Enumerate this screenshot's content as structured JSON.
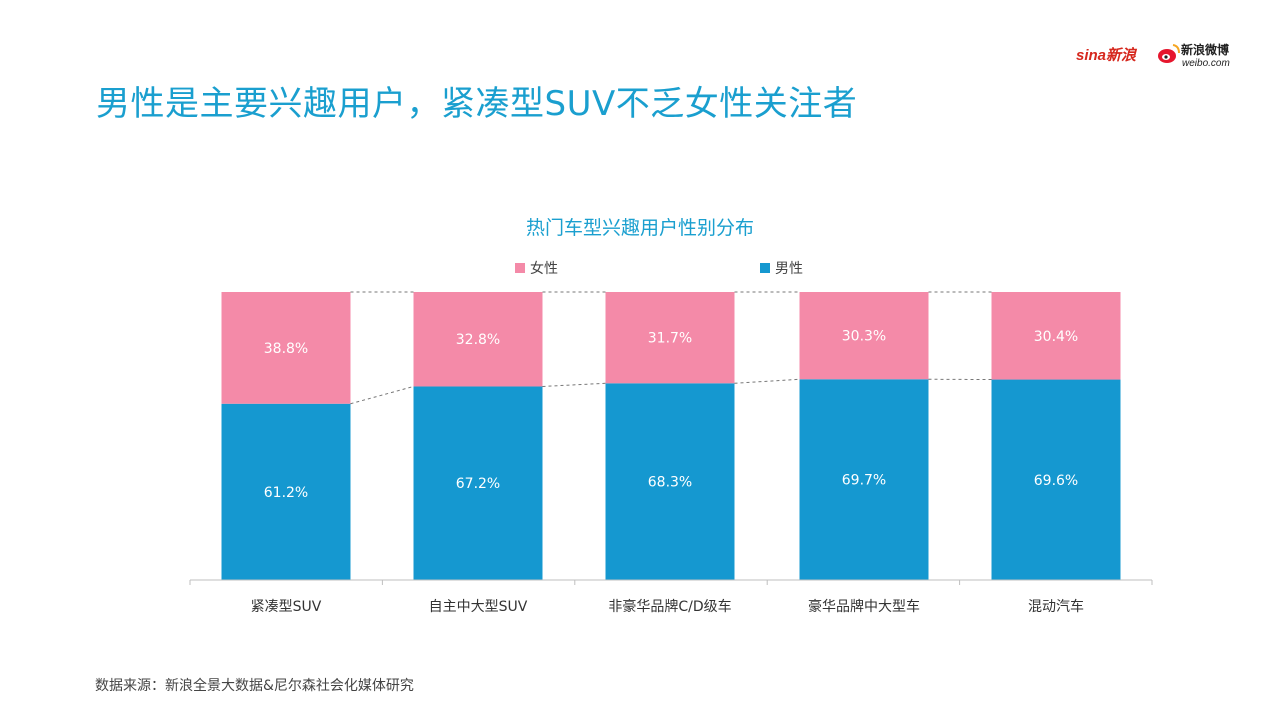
{
  "page": {
    "title": "男性是主要兴趣用户，紧凑型SUV不乏女性关注者",
    "source": "数据来源：新浪全景大数据&尼尔森社会化媒体研究"
  },
  "logos": {
    "sina_text": "sina新浪",
    "weibo_cn": "新浪微博",
    "weibo_url": "weibo.com"
  },
  "colors": {
    "female": "#f48aa8",
    "male": "#1598d0",
    "title": "#1a9fcf"
  },
  "chart_data": {
    "type": "bar",
    "stacked": true,
    "title": "热门车型兴趣用户性别分布",
    "categories": [
      "紧凑型SUV",
      "自主中大型SUV",
      "非豪华品牌C/D级车",
      "豪华品牌中大型车",
      "混动汽车"
    ],
    "series": [
      {
        "name": "男性",
        "values": [
          61.2,
          67.2,
          68.3,
          69.7,
          69.6
        ]
      },
      {
        "name": "女性",
        "values": [
          38.8,
          32.8,
          31.7,
          30.3,
          30.4
        ]
      }
    ],
    "value_labels_male": [
      "61.2%",
      "67.2%",
      "68.3%",
      "69.7%",
      "69.6%"
    ],
    "value_labels_female": [
      "38.8%",
      "32.8%",
      "31.7%",
      "30.3%",
      "30.4%"
    ],
    "legend": {
      "position": "top-center",
      "entries": [
        "女性",
        "男性"
      ]
    },
    "ylim": [
      0,
      100
    ],
    "grid": false
  }
}
